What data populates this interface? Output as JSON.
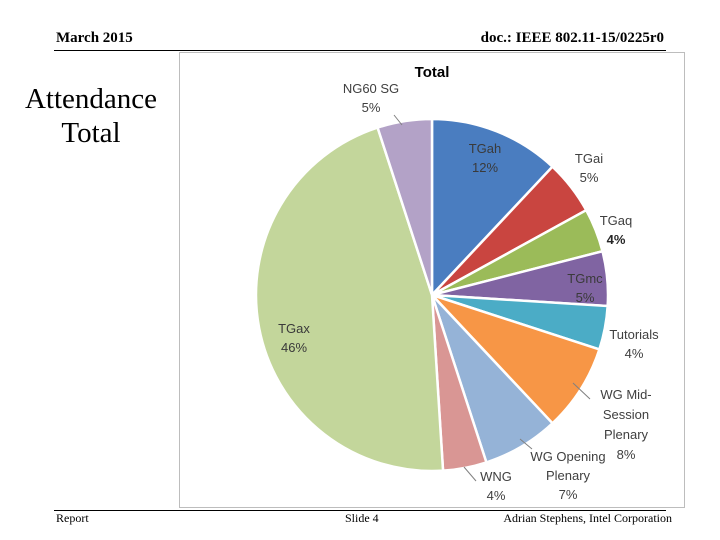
{
  "header": {
    "date": "March 2015",
    "doc": "doc.: IEEE 802.11-15/0225r0"
  },
  "slide": {
    "title_line1": "Attendance",
    "title_line2": "Total"
  },
  "footer": {
    "left": "Report",
    "center": "Slide 4",
    "right": "Adrian Stephens, Intel Corporation"
  },
  "chart_data": {
    "type": "pie",
    "title": "Total",
    "start_angle_deg": 0,
    "direction": "clockwise",
    "slices": [
      {
        "name": "TGah",
        "label_lines": [
          "TGah",
          "12%"
        ],
        "value": 12,
        "color": "#4a7dc0",
        "label_pos": "inside"
      },
      {
        "name": "TGai",
        "label_lines": [
          "TGai",
          "5%"
        ],
        "value": 5,
        "color": "#c94540",
        "label_pos": "outside"
      },
      {
        "name": "TGaq",
        "label_lines": [
          "TGaq",
          "4%"
        ],
        "value": 4,
        "color": "#9bbb59",
        "label_pos": "outside",
        "bold_value": true
      },
      {
        "name": "TGmc",
        "label_lines": [
          "TGmc",
          "5%"
        ],
        "value": 5,
        "color": "#8064a2",
        "label_pos": "inside"
      },
      {
        "name": "Tutorials",
        "label_lines": [
          "Tutorials",
          "4%"
        ],
        "value": 4,
        "color": "#4bacc6",
        "label_pos": "outside"
      },
      {
        "name": "WG Mid-Session Plenary",
        "label_lines": [
          "WG Mid-",
          "Session",
          "Plenary",
          "8%"
        ],
        "value": 8,
        "color": "#f79646",
        "label_pos": "outside"
      },
      {
        "name": "WG Opening Plenary",
        "label_lines": [
          "WG Opening",
          "Plenary",
          "7%"
        ],
        "value": 7,
        "color": "#95b3d7",
        "label_pos": "outside"
      },
      {
        "name": "WNG",
        "label_lines": [
          "WNG",
          "4%"
        ],
        "value": 4,
        "color": "#d99694",
        "label_pos": "outside"
      },
      {
        "name": "TGax",
        "label_lines": [
          "TGax",
          "46%"
        ],
        "value": 46,
        "color": "#c3d69b",
        "label_pos": "inside"
      },
      {
        "name": "NG60 SG",
        "label_lines": [
          "NG60 SG",
          "5%"
        ],
        "value": 5,
        "color": "#b3a2c7",
        "label_pos": "outside"
      }
    ]
  }
}
